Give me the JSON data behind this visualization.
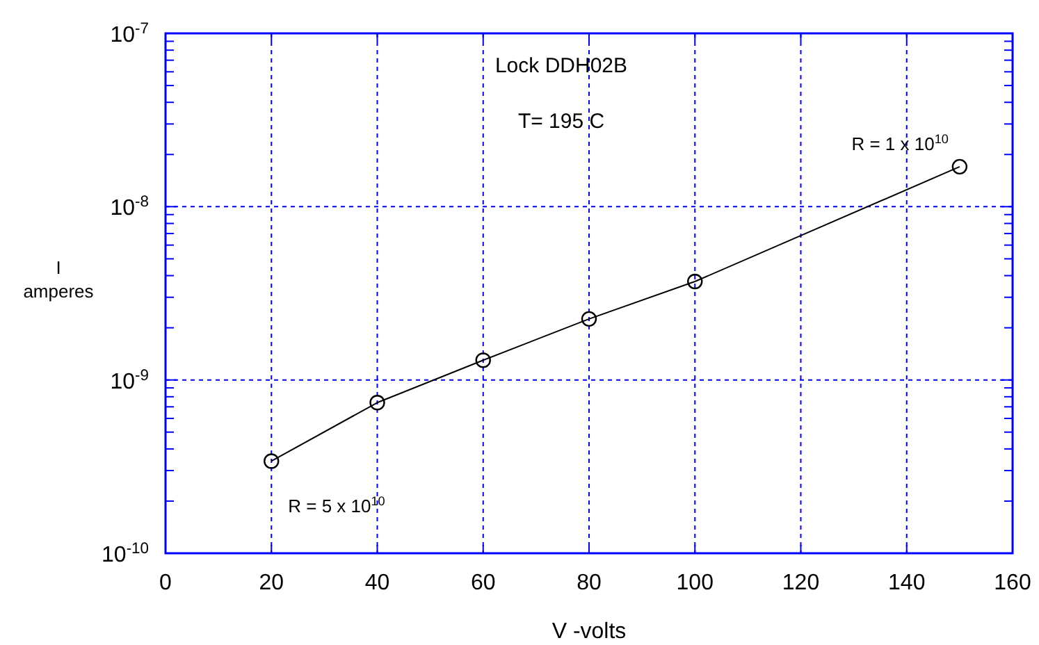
{
  "chart_data": {
    "type": "line",
    "title": "Lock DDH02B",
    "subtitle": "T= 195 C",
    "xlabel": "V -volts",
    "ylabel": "I\namperes",
    "x": [
      20,
      40,
      60,
      80,
      100,
      150
    ],
    "series": [
      {
        "color": "#000000",
        "values": [
          3.4e-10,
          7.4e-10,
          1.3e-09,
          2.25e-09,
          3.7e-09,
          1.7e-08
        ]
      }
    ],
    "xlim": [
      0,
      160
    ],
    "xticks": [
      0,
      20,
      40,
      60,
      80,
      100,
      120,
      140,
      160
    ],
    "ylim": [
      1e-10,
      1e-07
    ],
    "yticks": [
      {
        "value": 1e-10,
        "label": "10$^{-10}$"
      },
      {
        "value": 2e-10,
        "label": null
      },
      {
        "value": 3e-10,
        "label": null
      },
      {
        "value": 4e-10,
        "label": null
      },
      {
        "value": 5e-10,
        "label": null
      },
      {
        "value": 6e-10,
        "label": null
      },
      {
        "value": 7e-10,
        "label": null
      },
      {
        "value": 8e-10,
        "label": null
      },
      {
        "value": 9e-10,
        "label": null
      },
      {
        "value": 1e-09,
        "label": "10$^{-9}$"
      },
      {
        "value": 2e-09,
        "label": null
      },
      {
        "value": 3e-09,
        "label": null
      },
      {
        "value": 4e-09,
        "label": null
      },
      {
        "value": 5e-09,
        "label": null
      },
      {
        "value": 6e-09,
        "label": null
      },
      {
        "value": 7e-09,
        "label": null
      },
      {
        "value": 8e-09,
        "label": null
      },
      {
        "value": 9e-09,
        "label": null
      },
      {
        "value": 1e-08,
        "label": "10$^{-8}$"
      },
      {
        "value": 2e-08,
        "label": null
      },
      {
        "value": 3e-08,
        "label": null
      },
      {
        "value": 4e-08,
        "label": null
      },
      {
        "value": 5e-08,
        "label": null
      },
      {
        "value": 6e-08,
        "label": null
      },
      {
        "value": 7e-08,
        "label": null
      },
      {
        "value": 8e-08,
        "label": null
      },
      {
        "value": 9e-08,
        "label": null
      },
      {
        "value": 1e-07,
        "label": "10$^{-7}$"
      }
    ],
    "log": "y",
    "grid": true,
    "marker": "circle",
    "line_style": "solid",
    "annotations": [
      {
        "text": "R = 5 x 10$^{10}$",
        "x": 20,
        "y": 3.4e-10
      },
      {
        "text": "R = 1 x 10$^{10}$",
        "x": 150,
        "y": 1.7e-08
      }
    ]
  }
}
